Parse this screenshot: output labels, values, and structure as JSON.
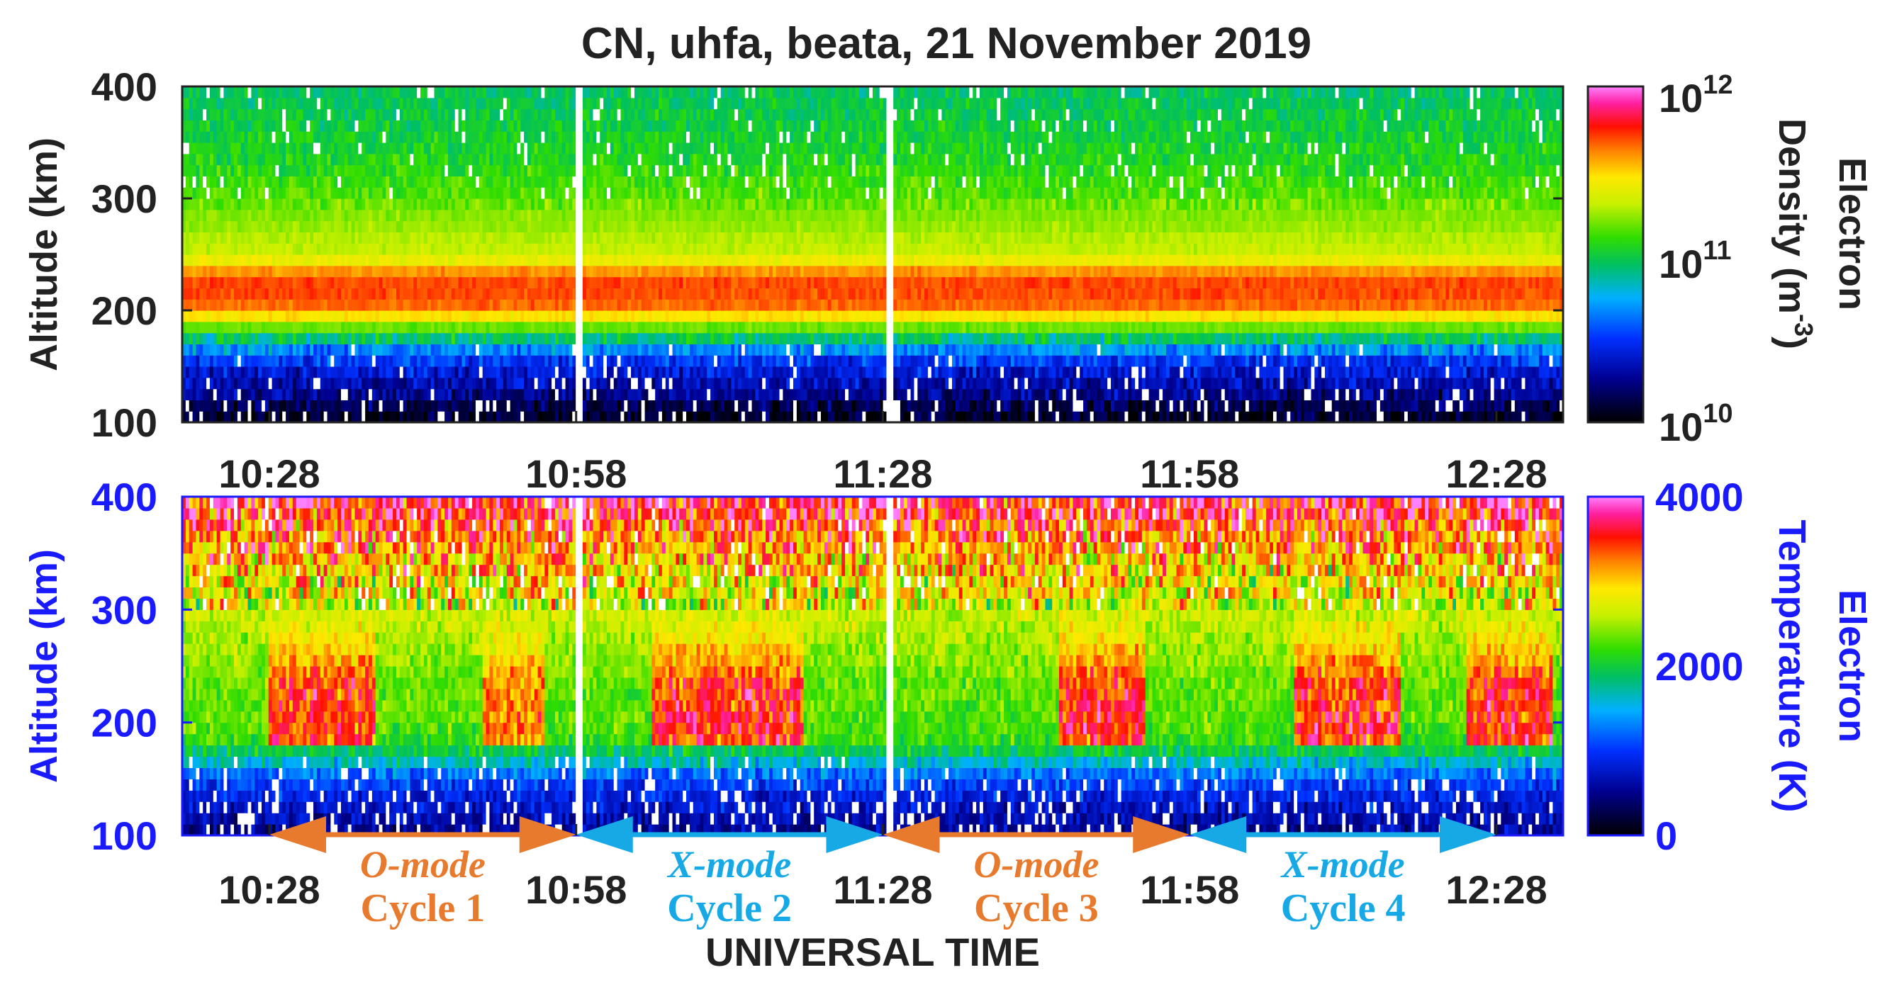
{
  "title": "CN, uhfa, beata, 21 November 2019",
  "xlabel": "UNIVERSAL TIME",
  "colors": {
    "axis_black": "#222222",
    "axis_blue": "#1a1aff",
    "o_mode": "#e87a2e",
    "x_mode": "#16a9e6"
  },
  "chart_data": [
    {
      "type": "heatmap",
      "title": "CN, uhfa, beata, 21 November 2019",
      "quantity": "electron_density",
      "ylabel": "Altitude (km)",
      "yticks": [
        "100",
        "200",
        "300",
        "400"
      ],
      "ylim": [
        100,
        400
      ],
      "xticks": [
        "10:28",
        "10:58",
        "11:28",
        "11:58",
        "12:28"
      ],
      "xlim": [
        "10:28",
        "12:28"
      ],
      "colorbar": {
        "label_line1": "Electron",
        "label_line2": "Density (m",
        "label_sup": "-3",
        "label_close": ")",
        "scale": "log",
        "range": [
          10000000000.0,
          1000000000000.0
        ],
        "tick_base": "10",
        "tick_exponents": [
          "10",
          "11",
          "12"
        ]
      },
      "altitude_profile": {
        "altitudes_km": [
          100,
          110,
          120,
          130,
          140,
          150,
          160,
          170,
          180,
          190,
          200,
          210,
          220,
          230,
          240,
          250,
          260,
          270,
          280,
          290,
          300,
          310,
          320,
          330,
          340,
          350,
          360,
          370,
          380,
          390,
          400
        ],
        "log10_density": [
          10.05,
          10.1,
          10.2,
          10.3,
          10.35,
          10.45,
          10.55,
          10.8,
          11.05,
          11.3,
          11.62,
          11.68,
          11.7,
          11.68,
          11.5,
          11.3,
          11.3,
          11.25,
          11.22,
          11.2,
          11.15,
          11.12,
          11.1,
          11.05,
          11.05,
          11.02,
          11.0,
          11.0,
          10.98,
          10.95,
          10.95
        ]
      }
    },
    {
      "type": "heatmap",
      "quantity": "electron_temperature",
      "ylabel": "Altitude (km)",
      "yticks": [
        "100",
        "200",
        "300",
        "400"
      ],
      "ylim": [
        100,
        400
      ],
      "xticks": [
        "10:28",
        "10:58",
        "11:28",
        "11:58",
        "12:28"
      ],
      "xlim": [
        "10:28",
        "12:28"
      ],
      "xlabel": "UNIVERSAL TIME",
      "colorbar": {
        "label_line1": "Electron",
        "label_line2": "Temperature (K)",
        "scale": "linear",
        "range": [
          0,
          4000
        ],
        "ticks": [
          "0",
          "2000",
          "4000"
        ]
      },
      "altitude_profile": {
        "altitudes_km": [
          100,
          110,
          120,
          130,
          140,
          150,
          160,
          170,
          180,
          190,
          200,
          210,
          220,
          230,
          240,
          250,
          260,
          270,
          280,
          290,
          300,
          310,
          320,
          330,
          340,
          350,
          360,
          370,
          380,
          390,
          400
        ],
        "temperature_K": [
          500,
          600,
          700,
          800,
          950,
          1100,
          1400,
          1800,
          2100,
          2200,
          2300,
          2300,
          2300,
          2300,
          2350,
          2400,
          2450,
          2500,
          2550,
          2600,
          2650,
          2700,
          2800,
          2900,
          3000,
          3100,
          3200,
          3350,
          3500,
          3600,
          3700
        ]
      },
      "heating_enhancements": [
        {
          "start": "10:30",
          "end": "10:40",
          "peak_K": 3700
        },
        {
          "start": "10:50",
          "end": "10:56",
          "peak_K": 3400
        },
        {
          "start": "11:06",
          "end": "11:20",
          "peak_K": 3700
        },
        {
          "start": "11:44",
          "end": "11:52",
          "peak_K": 3700
        },
        {
          "start": "12:06",
          "end": "12:16",
          "peak_K": 3700
        },
        {
          "start": "12:22",
          "end": "12:30",
          "peak_K": 3700
        }
      ],
      "mode_cycles": [
        {
          "mode": "O-mode",
          "cycle": "Cycle 1",
          "start": "10:28",
          "end": "10:58"
        },
        {
          "mode": "X-mode",
          "cycle": "Cycle 2",
          "start": "10:58",
          "end": "11:28"
        },
        {
          "mode": "O-mode",
          "cycle": "Cycle 3",
          "start": "11:28",
          "end": "11:58"
        },
        {
          "mode": "X-mode",
          "cycle": "Cycle 4",
          "start": "11:58",
          "end": "12:28"
        }
      ]
    }
  ]
}
